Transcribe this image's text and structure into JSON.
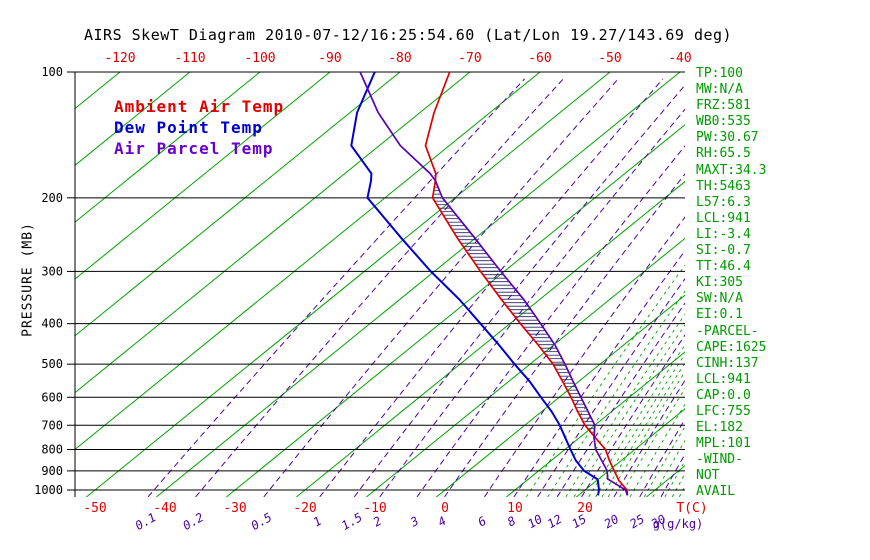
{
  "chart_data": {
    "type": "line",
    "title": "AIRS SkewT Diagram 2010-07-12/16:25:54.60 (Lat/Lon 19.27/143.69 deg)",
    "ylabel": "PRESSURE (MB)",
    "xlabel": "T(C)",
    "x2label": "g(g/kg)",
    "y_scale": "log",
    "y_range_mb": [
      100,
      1000
    ],
    "pressure_ticks_mb": [
      100,
      200,
      300,
      400,
      500,
      600,
      700,
      800,
      900,
      1000
    ],
    "top_temp_ticks_c": [
      -120,
      -110,
      -100,
      -90,
      -80,
      -70,
      -60,
      -50,
      -40
    ],
    "bottom_temp_ticks_c": [
      -50,
      -40,
      -30,
      -20,
      -10,
      0,
      10,
      20
    ],
    "isotherms_c": {
      "min": -120,
      "max": 40,
      "step": 10
    },
    "mixing_ratio_lines_gkg": [
      0.1,
      0.2,
      0.5,
      1,
      1.5,
      2,
      3,
      4,
      6,
      8,
      10,
      12,
      15,
      20,
      25,
      30
    ],
    "mixing_ratio_minor_gkg": [
      9,
      11,
      13,
      14,
      16,
      17,
      18,
      19,
      21,
      23,
      26,
      28,
      31,
      33,
      35
    ],
    "sounding": {
      "pressure_mb": [
        1030,
        1000,
        950,
        941,
        900,
        850,
        800,
        750,
        700,
        650,
        600,
        550,
        500,
        450,
        400,
        350,
        300,
        250,
        200,
        182,
        175,
        150,
        125,
        100
      ],
      "series": [
        {
          "name": "Ambient Air Temp",
          "color": "#e10000",
          "values": [
            27.0,
            26.0,
            23.2,
            22.8,
            20.8,
            18.3,
            15.8,
            12.3,
            8.6,
            5.2,
            1.7,
            -2.3,
            -6.7,
            -12.2,
            -18.5,
            -25.5,
            -33.4,
            -42.5,
            -53.2,
            -55.8,
            -57.0,
            -63.4,
            -68.0,
            -72.9
          ]
        },
        {
          "name": "Dew Point Temp",
          "color": "#0000cc",
          "values": [
            22.8,
            22.0,
            20.2,
            19.8,
            16.5,
            13.5,
            10.8,
            8.0,
            5.0,
            1.5,
            -2.6,
            -7.0,
            -12.2,
            -17.8,
            -24.2,
            -31.5,
            -40.5,
            -50.5,
            -62.5,
            -65.0,
            -66.2,
            -74.0,
            -79.0,
            -83.6
          ]
        },
        {
          "name": "Air Parcel Temp",
          "color": "#5a00b4",
          "values": [
            27.0,
            25.8,
            22.0,
            21.3,
            19.8,
            17.2,
            14.4,
            12.1,
            10.0,
            6.7,
            3.1,
            -0.8,
            -5.0,
            -9.8,
            -15.6,
            -22.3,
            -30.5,
            -40.0,
            -51.8,
            -55.8,
            -57.8,
            -67.0,
            -76.0,
            -85.7
          ]
        }
      ]
    },
    "cape_hatch_mb": {
      "top": 185,
      "bottom": 750
    }
  },
  "legend": [
    {
      "label": "Ambient Air Temp",
      "color": "#e10000"
    },
    {
      "label": "Dew Point Temp",
      "color": "#0000cc"
    },
    {
      "label": "Air Parcel Temp",
      "color": "#6a00d0"
    }
  ],
  "stats_panel": [
    "TP:100",
    "MW:N/A",
    "FRZ:581",
    "WB0:535",
    "PW:30.67",
    "RH:65.5",
    "MAXT:34.3",
    "TH:5463",
    "L57:6.3",
    "LCL:941",
    "LI:-3.4",
    "SI:-0.7",
    "TT:46.4",
    "KI:305",
    "SW:N/A",
    "EI:0.1",
    "-PARCEL-",
    "CAPE:1625",
    "CINH:137",
    "LCL:941",
    "CAP:0.0",
    "LFC:755",
    "EL:182",
    "MPL:101",
    "-WIND-",
    "NOT",
    "AVAIL"
  ],
  "colors": {
    "isotherm_green": "#00a400",
    "mixing_purple": "#4b00a0",
    "stats_green": "#009b00",
    "axis_black": "#000000",
    "hatch": "#222266",
    "tick_red": "#e10000"
  }
}
